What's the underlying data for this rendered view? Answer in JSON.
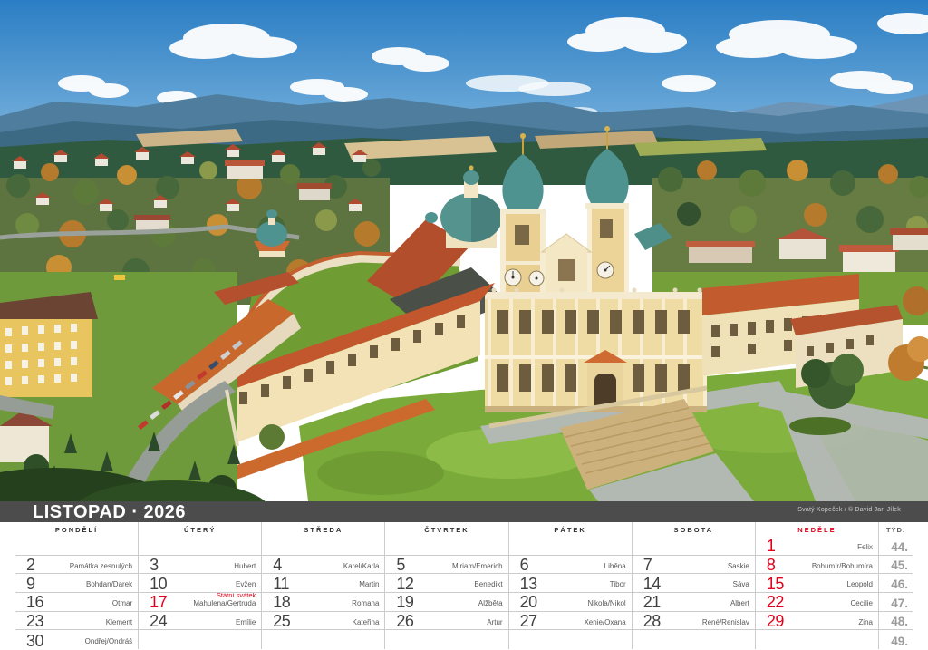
{
  "title": "LISTOPAD · 2026",
  "photo": {
    "credit": "Svatý Kopeček / © David Jan Jílek"
  },
  "weekday_headers": [
    "PONDĚLÍ",
    "ÚTERÝ",
    "STŘEDA",
    "ČTVRTEK",
    "PÁTEK",
    "SOBOTA",
    "NEDĚLE"
  ],
  "week_label": "TÝD.",
  "colors": {
    "accent_red": "#e2001a",
    "titlebar_bg": "#4c4c4c",
    "grid_line": "#cccccc",
    "day_number_gray": "#414141",
    "week_number_gray": "#9b9b9b"
  },
  "weeks": [
    {
      "week_number": "44.",
      "days": [
        {
          "day": "",
          "name": ""
        },
        {
          "day": "",
          "name": ""
        },
        {
          "day": "",
          "name": ""
        },
        {
          "day": "",
          "name": ""
        },
        {
          "day": "",
          "name": ""
        },
        {
          "day": "",
          "name": ""
        },
        {
          "day": "1",
          "name": "Felix",
          "red": true
        }
      ]
    },
    {
      "week_number": "45.",
      "days": [
        {
          "day": "2",
          "name": "Památka zesnulých"
        },
        {
          "day": "3",
          "name": "Hubert"
        },
        {
          "day": "4",
          "name": "Karel/Karla"
        },
        {
          "day": "5",
          "name": "Miriam/Emerich"
        },
        {
          "day": "6",
          "name": "Liběna"
        },
        {
          "day": "7",
          "name": "Saskie"
        },
        {
          "day": "8",
          "name": "Bohumír/Bohumíra",
          "red": true
        }
      ]
    },
    {
      "week_number": "46.",
      "days": [
        {
          "day": "9",
          "name": "Bohdan/Darek"
        },
        {
          "day": "10",
          "name": "Evžen"
        },
        {
          "day": "11",
          "name": "Martin"
        },
        {
          "day": "12",
          "name": "Benedikt"
        },
        {
          "day": "13",
          "name": "Tibor"
        },
        {
          "day": "14",
          "name": "Sáva"
        },
        {
          "day": "15",
          "name": "Leopold",
          "red": true
        }
      ]
    },
    {
      "week_number": "47.",
      "days": [
        {
          "day": "16",
          "name": "Otmar"
        },
        {
          "day": "17",
          "name": "Mahulena/Gertruda",
          "holiday": "Státní svátek",
          "red": true
        },
        {
          "day": "18",
          "name": "Romana"
        },
        {
          "day": "19",
          "name": "Alžběta"
        },
        {
          "day": "20",
          "name": "Nikola/Nikol"
        },
        {
          "day": "21",
          "name": "Albert"
        },
        {
          "day": "22",
          "name": "Cecílie",
          "red": true
        }
      ]
    },
    {
      "week_number": "48.",
      "days": [
        {
          "day": "23",
          "name": "Klement"
        },
        {
          "day": "24",
          "name": "Emílie"
        },
        {
          "day": "25",
          "name": "Kateřina"
        },
        {
          "day": "26",
          "name": "Artur"
        },
        {
          "day": "27",
          "name": "Xenie/Oxana"
        },
        {
          "day": "28",
          "name": "René/Renislav"
        },
        {
          "day": "29",
          "name": "Zina",
          "red": true
        }
      ]
    },
    {
      "week_number": "49.",
      "days": [
        {
          "day": "30",
          "name": "Ondřej/Ondráš"
        },
        {
          "day": "",
          "name": ""
        },
        {
          "day": "",
          "name": ""
        },
        {
          "day": "",
          "name": ""
        },
        {
          "day": "",
          "name": ""
        },
        {
          "day": "",
          "name": ""
        },
        {
          "day": "",
          "name": ""
        }
      ]
    }
  ]
}
